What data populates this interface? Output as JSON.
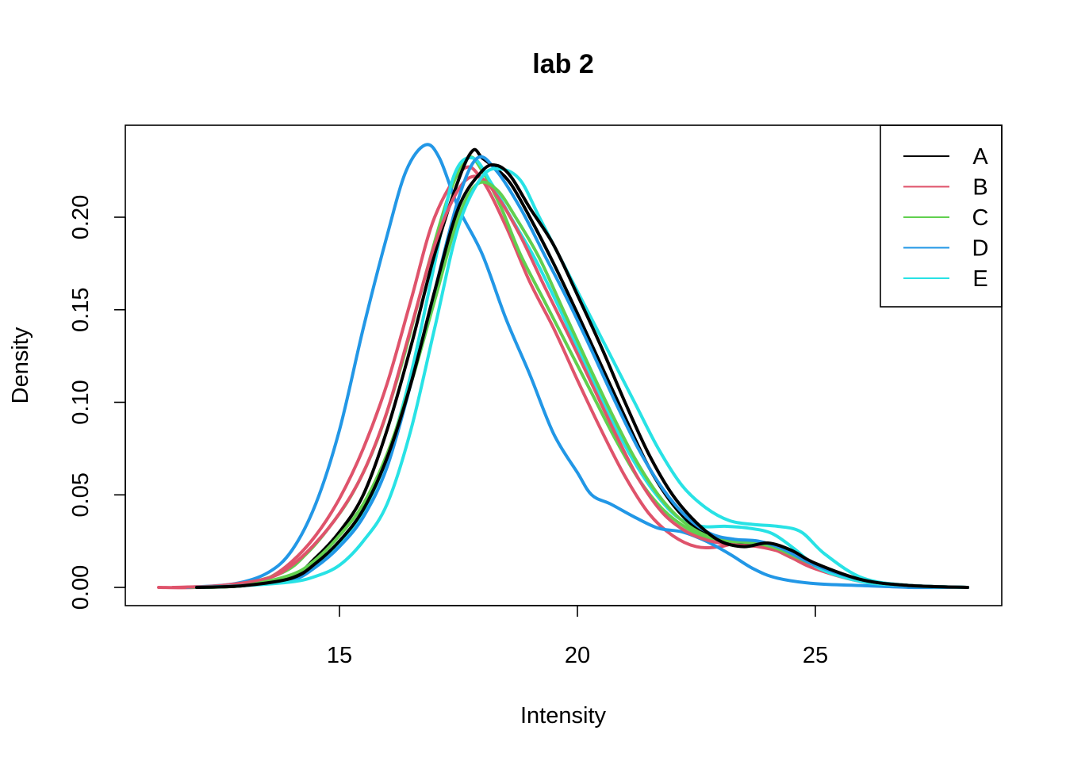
{
  "chart_data": {
    "type": "line",
    "title": "lab 2",
    "xlabel": "Intensity",
    "ylabel": "Density",
    "xlim": [
      11.2,
      28.3
    ],
    "ylim": [
      0,
      0.24
    ],
    "x_ticks": [
      15,
      20,
      25
    ],
    "x_tick_labels": [
      "15",
      "20",
      "25"
    ],
    "y_ticks": [
      0,
      0.05,
      0.1,
      0.15,
      0.2
    ],
    "y_tick_labels": [
      "0.00",
      "0.05",
      "0.10",
      "0.15",
      "0.20"
    ],
    "legend_position": "top-right",
    "legend": [
      {
        "label": "A",
        "color": "#000000"
      },
      {
        "label": "B",
        "color": "#DF536B"
      },
      {
        "label": "C",
        "color": "#61D04F"
      },
      {
        "label": "D",
        "color": "#2297E6"
      },
      {
        "label": "E",
        "color": "#28E2E5"
      }
    ],
    "series": [
      {
        "color": "#000000",
        "x": [
          12,
          13,
          14,
          14.5,
          15,
          15.5,
          16,
          16.5,
          17,
          17.5,
          17.8,
          18,
          18.3,
          18.6,
          19,
          19.5,
          20,
          20.5,
          21,
          21.5,
          22,
          22.5,
          23,
          23.5,
          24,
          24.5,
          25,
          26,
          27,
          28.2
        ],
        "values": [
          0,
          0.001,
          0.006,
          0.016,
          0.03,
          0.05,
          0.085,
          0.13,
          0.18,
          0.22,
          0.236,
          0.232,
          0.226,
          0.218,
          0.2,
          0.175,
          0.148,
          0.12,
          0.092,
          0.065,
          0.045,
          0.032,
          0.026,
          0.024,
          0.022,
          0.018,
          0.012,
          0.004,
          0.001,
          0
        ]
      },
      {
        "color": "#000000",
        "x": [
          12,
          13,
          14,
          14.5,
          15,
          15.5,
          16,
          16.5,
          17,
          17.5,
          18,
          18.3,
          18.6,
          19,
          19.5,
          20,
          20.5,
          21,
          21.5,
          22,
          22.5,
          23,
          23.5,
          24,
          24.5,
          25,
          26,
          27,
          28.2
        ],
        "values": [
          0,
          0.001,
          0.005,
          0.013,
          0.025,
          0.042,
          0.07,
          0.11,
          0.16,
          0.205,
          0.225,
          0.228,
          0.222,
          0.205,
          0.185,
          0.158,
          0.13,
          0.1,
          0.072,
          0.05,
          0.035,
          0.025,
          0.022,
          0.024,
          0.02,
          0.013,
          0.004,
          0.001,
          0
        ]
      },
      {
        "color": "#DF536B",
        "x": [
          11.2,
          12,
          13,
          13.5,
          14,
          14.5,
          15,
          15.5,
          16,
          16.5,
          17,
          17.6,
          18,
          18.5,
          19,
          19.5,
          20,
          20.5,
          21,
          21.5,
          22,
          22.5,
          23,
          23.5,
          24,
          24.5,
          25,
          26,
          27,
          28
        ],
        "values": [
          0,
          0,
          0.002,
          0.005,
          0.014,
          0.028,
          0.048,
          0.075,
          0.11,
          0.155,
          0.2,
          0.226,
          0.22,
          0.195,
          0.165,
          0.14,
          0.112,
          0.085,
          0.06,
          0.04,
          0.028,
          0.022,
          0.022,
          0.025,
          0.022,
          0.016,
          0.01,
          0.003,
          0.001,
          0
        ]
      },
      {
        "color": "#DF536B",
        "x": [
          11.5,
          12.5,
          13.5,
          14,
          14.5,
          15,
          15.5,
          16,
          16.5,
          17,
          17.5,
          17.9,
          18.3,
          18.8,
          19.3,
          19.8,
          20.3,
          20.8,
          21.3,
          21.8,
          22.3,
          22.8,
          23.3,
          23.8,
          24.3,
          25,
          26,
          27,
          28
        ],
        "values": [
          0,
          0.001,
          0.005,
          0.012,
          0.024,
          0.04,
          0.062,
          0.095,
          0.14,
          0.185,
          0.215,
          0.222,
          0.212,
          0.19,
          0.163,
          0.137,
          0.11,
          0.083,
          0.058,
          0.04,
          0.03,
          0.025,
          0.023,
          0.022,
          0.019,
          0.012,
          0.004,
          0.001,
          0
        ]
      },
      {
        "color": "#61D04F",
        "x": [
          11.8,
          12.8,
          13.8,
          14.3,
          14.8,
          15.3,
          15.8,
          16.3,
          16.8,
          17.3,
          17.7,
          18,
          18.4,
          18.8,
          19.3,
          19.8,
          20.3,
          20.8,
          21.3,
          21.8,
          22.3,
          22.8,
          23.3,
          23.8,
          24.3,
          25,
          26,
          27,
          28
        ],
        "values": [
          0,
          0.001,
          0.008,
          0.018,
          0.033,
          0.052,
          0.08,
          0.12,
          0.168,
          0.212,
          0.232,
          0.225,
          0.205,
          0.18,
          0.155,
          0.13,
          0.105,
          0.08,
          0.058,
          0.042,
          0.032,
          0.026,
          0.024,
          0.023,
          0.019,
          0.012,
          0.004,
          0.001,
          0
        ]
      },
      {
        "color": "#61D04F",
        "x": [
          12,
          13,
          14,
          14.5,
          15,
          15.5,
          16,
          16.5,
          17,
          17.5,
          17.9,
          18.3,
          18.7,
          19.2,
          19.7,
          20.2,
          20.7,
          21.2,
          21.7,
          22.2,
          22.7,
          23.2,
          23.7,
          24.2,
          25,
          26,
          27,
          28.2
        ],
        "values": [
          0,
          0.001,
          0.007,
          0.015,
          0.028,
          0.045,
          0.072,
          0.11,
          0.155,
          0.2,
          0.218,
          0.215,
          0.2,
          0.178,
          0.15,
          0.122,
          0.095,
          0.07,
          0.05,
          0.036,
          0.028,
          0.025,
          0.024,
          0.021,
          0.012,
          0.004,
          0.001,
          0
        ]
      },
      {
        "color": "#2297E6",
        "x": [
          11.8,
          12.8,
          13.5,
          14,
          14.5,
          15,
          15.5,
          16,
          16.4,
          16.8,
          17.1,
          17.5,
          18,
          18.5,
          19,
          19.5,
          20,
          20.3,
          20.7,
          21.2,
          21.7,
          22.2,
          22.7,
          23.2,
          23.7,
          24.2,
          25,
          26,
          27,
          28
        ],
        "values": [
          0,
          0.002,
          0.008,
          0.02,
          0.045,
          0.085,
          0.14,
          0.19,
          0.225,
          0.239,
          0.232,
          0.205,
          0.18,
          0.145,
          0.115,
          0.083,
          0.062,
          0.05,
          0.045,
          0.038,
          0.032,
          0.03,
          0.025,
          0.018,
          0.01,
          0.005,
          0.002,
          0.001,
          0,
          0
        ]
      },
      {
        "color": "#2297E6",
        "x": [
          12,
          13,
          14,
          14.5,
          15,
          15.5,
          16,
          16.5,
          17,
          17.5,
          17.9,
          18.3,
          18.8,
          19.3,
          19.8,
          20.3,
          20.8,
          21.3,
          21.8,
          22.3,
          22.8,
          23.3,
          23.8,
          24.3,
          25,
          26,
          27,
          28.2
        ],
        "values": [
          0,
          0.001,
          0.004,
          0.011,
          0.022,
          0.038,
          0.065,
          0.11,
          0.16,
          0.21,
          0.232,
          0.225,
          0.205,
          0.18,
          0.155,
          0.128,
          0.1,
          0.074,
          0.053,
          0.038,
          0.029,
          0.026,
          0.025,
          0.021,
          0.012,
          0.004,
          0.001,
          0
        ]
      },
      {
        "color": "#28E2E5",
        "x": [
          12,
          13,
          14,
          14.5,
          15,
          15.5,
          16,
          16.5,
          17,
          17.4,
          17.8,
          18.2,
          18.6,
          19.1,
          19.6,
          20.1,
          20.6,
          21.1,
          21.6,
          22.1,
          22.6,
          23.1,
          23.6,
          24.1,
          24.6,
          25.1,
          26,
          27,
          28.2
        ],
        "values": [
          0,
          0.001,
          0.005,
          0.012,
          0.024,
          0.041,
          0.07,
          0.115,
          0.175,
          0.222,
          0.232,
          0.218,
          0.2,
          0.178,
          0.152,
          0.124,
          0.097,
          0.072,
          0.052,
          0.038,
          0.033,
          0.033,
          0.032,
          0.029,
          0.02,
          0.01,
          0.003,
          0.001,
          0
        ]
      },
      {
        "color": "#28E2E5",
        "x": [
          12,
          13,
          14,
          14.5,
          15,
          15.5,
          16,
          16.5,
          17,
          17.5,
          18,
          18.4,
          18.8,
          19.2,
          19.7,
          20.2,
          20.7,
          21.2,
          21.7,
          22.2,
          22.7,
          23.2,
          23.7,
          24.2,
          24.7,
          25.2,
          26,
          27,
          28.2
        ],
        "values": [
          0,
          0.001,
          0.003,
          0.006,
          0.012,
          0.025,
          0.045,
          0.085,
          0.14,
          0.195,
          0.222,
          0.226,
          0.22,
          0.2,
          0.175,
          0.15,
          0.125,
          0.1,
          0.075,
          0.055,
          0.043,
          0.036,
          0.034,
          0.033,
          0.03,
          0.018,
          0.005,
          0.001,
          0
        ]
      }
    ]
  }
}
